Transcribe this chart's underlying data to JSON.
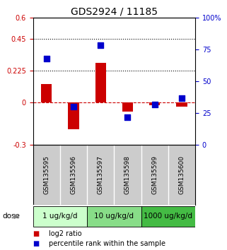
{
  "title": "GDS2924 / 11185",
  "samples": [
    "GSM135595",
    "GSM135596",
    "GSM135597",
    "GSM135598",
    "GSM135599",
    "GSM135600"
  ],
  "log2_ratio": [
    0.13,
    -0.19,
    0.28,
    -0.065,
    -0.02,
    -0.03
  ],
  "percentile_rank": [
    68,
    30,
    78,
    22,
    32,
    37
  ],
  "ylim_left": [
    -0.3,
    0.6
  ],
  "ylim_right": [
    0,
    100
  ],
  "yticks_left": [
    -0.3,
    0,
    0.225,
    0.45,
    0.6
  ],
  "yticks_right": [
    0,
    25,
    50,
    75,
    100
  ],
  "ytick_labels_left": [
    "-0.3",
    "0",
    "0.225",
    "0.45",
    "0.6"
  ],
  "ytick_labels_right": [
    "0",
    "25",
    "50",
    "75",
    "100%"
  ],
  "hlines": [
    0.225,
    0.45
  ],
  "bar_color": "#cc0000",
  "dot_color": "#0000cc",
  "zero_line_color": "#cc0000",
  "dose_groups": [
    {
      "label": "1 ug/kg/d",
      "samples": [
        0,
        1
      ],
      "color": "#ccffcc"
    },
    {
      "label": "10 ug/kg/d",
      "samples": [
        2,
        3
      ],
      "color": "#88dd88"
    },
    {
      "label": "1000 ug/kg/d",
      "samples": [
        4,
        5
      ],
      "color": "#44bb44"
    }
  ],
  "dose_label": "dose",
  "legend_bar_label": "log2 ratio",
  "legend_dot_label": "percentile rank within the sample",
  "bar_width": 0.4,
  "dot_size": 40,
  "background_color": "#ffffff",
  "plot_bg_color": "#ffffff",
  "sample_bg_color": "#cccccc",
  "title_fontsize": 10,
  "tick_fontsize": 7,
  "label_fontsize": 6.5,
  "legend_fontsize": 7,
  "dose_fontsize": 7.5
}
